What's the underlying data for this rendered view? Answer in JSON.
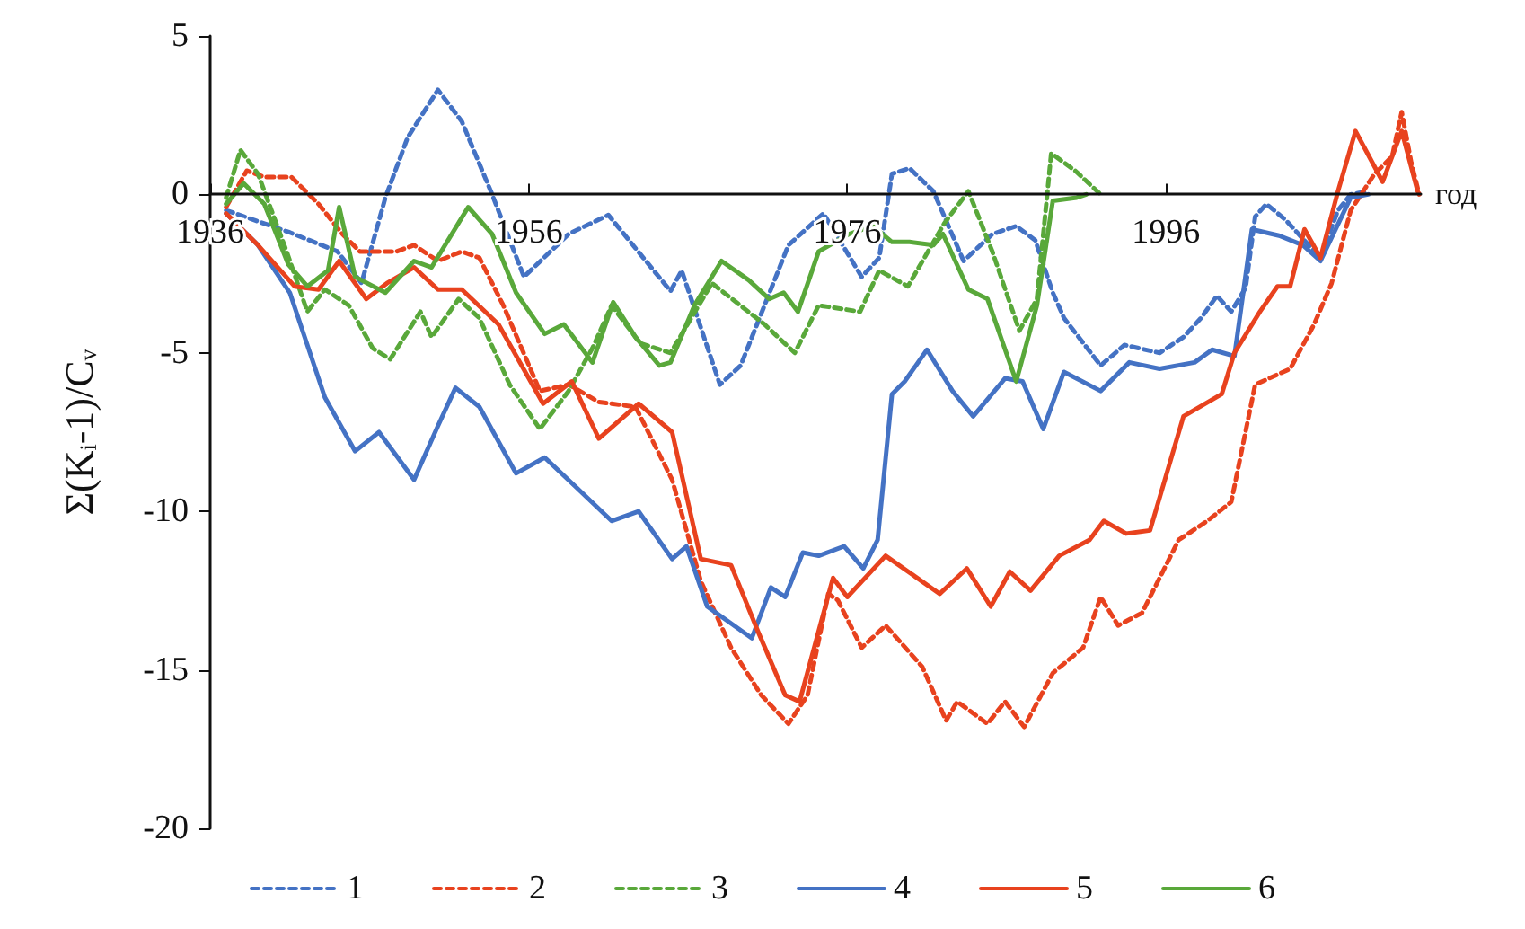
{
  "chart_data": {
    "type": "line",
    "xlabel": "год",
    "ylabel": "Σ(Kᵢ-1)/Cᵥ",
    "xlim": [
      1936,
      2012
    ],
    "xticks": [
      1936,
      1956,
      1976,
      1996
    ],
    "ylim": [
      -20,
      5
    ],
    "yticks": [
      -20,
      -15,
      -10,
      -5,
      0,
      5
    ],
    "grid": false,
    "legend": "bottom",
    "marker": "none",
    "series": [
      {
        "name": "1",
        "color": "#4472c4",
        "line_style": "dashed",
        "x": [
          1937,
          1941,
          1944,
          1945.5,
          1947,
          1948.4,
          1950.3,
          1951.8,
          1953.7,
          1955.7,
          1958.5,
          1961,
          1964.9,
          1965.6,
          1968,
          1969.3,
          1970.8,
          1972.3,
          1974.5,
          1976.9,
          1978,
          1978.8,
          1979.9,
          1981.4,
          1983.3,
          1985.1,
          1986.6,
          1987.8,
          1988.9,
          1989.6,
          1991.9,
          1993.4,
          1995.6,
          1997.1,
          1998.2,
          1999.2,
          2000.1,
          2001,
          2001.6,
          2002.3,
          2003.5,
          2005.7,
          2006.8,
          2007.6,
          2008.7
        ],
        "values": [
          -0.5,
          -1.2,
          -1.8,
          -2.8,
          -0.1,
          1.8,
          3.3,
          2.3,
          0,
          -2.6,
          -1.25,
          -0.65,
          -3.05,
          -2.4,
          -6.0,
          -5.4,
          -3.5,
          -1.6,
          -0.6,
          -2.6,
          -2.0,
          0.65,
          0.83,
          0.1,
          -2.1,
          -1.25,
          -1.0,
          -1.45,
          -3.1,
          -3.9,
          -5.4,
          -4.75,
          -5.0,
          -4.5,
          -3.9,
          -3.2,
          -3.7,
          -2.95,
          -0.7,
          -0.3,
          -0.8,
          -2.0,
          -0.5,
          0,
          0.1
        ]
      },
      {
        "name": "2",
        "color": "#e8421e",
        "line_style": "dashed",
        "x": [
          1937,
          1938.3,
          1939.4,
          1941.1,
          1942.8,
          1944.3,
          1945.4,
          1947.7,
          1948.8,
          1950.3,
          1951.8,
          1952.9,
          1954.4,
          1956.7,
          1958.5,
          1960.4,
          1962.7,
          1965,
          1966.8,
          1968.7,
          1970.6,
          1972.3,
          1973.5,
          1974.8,
          1975.4,
          1976.9,
          1978.4,
          1980.7,
          1982.2,
          1982.9,
          1984.8,
          1985.9,
          1987.1,
          1988.9,
          1990.8,
          1991.9,
          1993,
          1994.5,
          1996.8,
          1998.6,
          2000.1,
          2001.6,
          2003.8,
          2005.3,
          2006.4,
          2007.6,
          2009.1,
          2010.2,
          2010.8,
          2011.4,
          2011.9
        ],
        "values": [
          -0.4,
          0.75,
          0.55,
          0.55,
          -0.3,
          -1.25,
          -1.8,
          -1.8,
          -1.6,
          -2.1,
          -1.8,
          -2.0,
          -3.5,
          -6.2,
          -6.0,
          -6.55,
          -6.7,
          -9.0,
          -12.2,
          -14.3,
          -15.8,
          -16.7,
          -15.8,
          -12.6,
          -12.8,
          -14.3,
          -13.6,
          -14.9,
          -16.6,
          -16.0,
          -16.7,
          -16.0,
          -16.8,
          -15.1,
          -14.3,
          -12.7,
          -13.6,
          -13.2,
          -10.9,
          -10.3,
          -9.7,
          -6.0,
          -5.5,
          -4.1,
          -2.8,
          -0.5,
          0.65,
          1.2,
          2.6,
          1.0,
          0
        ]
      },
      {
        "name": "3",
        "color": "#59a83a",
        "line_style": "dashed",
        "x": [
          1937,
          1937.9,
          1939,
          1940.8,
          1942.1,
          1943.2,
          1944.7,
          1946.2,
          1947.3,
          1949.2,
          1949.9,
          1951.6,
          1952.9,
          1954.8,
          1956.7,
          1958.5,
          1960,
          1961.2,
          1963,
          1964.9,
          1967.5,
          1970.8,
          1972.7,
          1974.2,
          1976.8,
          1978,
          1979.8,
          1982.1,
          1983.6,
          1985.1,
          1986.8,
          1987.9,
          1988.8,
          1990.3,
          1991.9
        ],
        "values": [
          -0.1,
          1.4,
          0.65,
          -1.8,
          -3.7,
          -3.0,
          -3.5,
          -4.85,
          -5.2,
          -3.7,
          -4.5,
          -3.3,
          -3.9,
          -6.0,
          -7.4,
          -6.2,
          -4.85,
          -3.5,
          -4.7,
          -5.0,
          -2.8,
          -4.1,
          -5.0,
          -3.5,
          -3.7,
          -2.4,
          -2.9,
          -0.9,
          0.1,
          -1.8,
          -4.3,
          -3.3,
          1.3,
          0.75,
          0
        ]
      },
      {
        "name": "4",
        "color": "#4472c4",
        "line_style": "solid",
        "x": [
          1937,
          1939,
          1941,
          1943.2,
          1945.1,
          1946.6,
          1948.8,
          1950.3,
          1951.4,
          1952.9,
          1955.2,
          1957,
          1958.9,
          1961.2,
          1962.9,
          1965,
          1965.9,
          1967.2,
          1970,
          1971.2,
          1972.1,
          1973.2,
          1974.2,
          1975.8,
          1977,
          1977.9,
          1978.8,
          1979.6,
          1981,
          1982.6,
          1983.9,
          1985.9,
          1987,
          1988.3,
          1989.6,
          1991.9,
          1993.7,
          1995.6,
          1997.8,
          1998.9,
          2000.3,
          2001.4,
          2003.1,
          2004.6,
          2005.7,
          2007.6,
          2008.7
        ],
        "values": [
          -0.6,
          -1.6,
          -3.1,
          -6.4,
          -8.1,
          -7.5,
          -9.0,
          -7.3,
          -6.1,
          -6.7,
          -8.8,
          -8.3,
          -9.2,
          -10.3,
          -10.0,
          -11.5,
          -11.1,
          -13.0,
          -14.0,
          -12.4,
          -12.7,
          -11.3,
          -11.4,
          -11.1,
          -11.8,
          -10.9,
          -6.3,
          -5.9,
          -4.9,
          -6.2,
          -7.0,
          -5.8,
          -5.9,
          -7.4,
          -5.6,
          -6.2,
          -5.3,
          -5.5,
          -5.3,
          -4.9,
          -5.1,
          -1.1,
          -1.3,
          -1.6,
          -2.1,
          -0.1,
          0
        ]
      },
      {
        "name": "5",
        "color": "#e8421e",
        "line_style": "solid",
        "x": [
          1937,
          1939,
          1941.3,
          1942.8,
          1944.1,
          1945.8,
          1947.1,
          1948.8,
          1950.3,
          1951.8,
          1954.1,
          1956.9,
          1958.7,
          1960.4,
          1962.9,
          1965,
          1966.8,
          1968.7,
          1970.4,
          1972.1,
          1973,
          1975.1,
          1976,
          1978.4,
          1981.8,
          1983.5,
          1985,
          1986.2,
          1987.5,
          1989.3,
          1991.2,
          1992.1,
          1993.5,
          1995,
          1997.1,
          1999.5,
          2000.3,
          2001.9,
          2003,
          2003.8,
          2004.7,
          2005.7,
          2006.8,
          2007.9,
          2009.6,
          2010.8,
          2011.8
        ],
        "values": [
          -0.6,
          -1.6,
          -2.9,
          -3.0,
          -2.1,
          -3.3,
          -2.8,
          -2.3,
          -3.0,
          -3.0,
          -4.1,
          -6.6,
          -5.9,
          -7.7,
          -6.6,
          -7.5,
          -11.5,
          -11.7,
          -13.8,
          -15.8,
          -16.0,
          -12.1,
          -12.7,
          -11.4,
          -12.6,
          -11.8,
          -13.0,
          -11.9,
          -12.5,
          -11.4,
          -10.9,
          -10.3,
          -10.7,
          -10.6,
          -7.0,
          -6.3,
          -5.0,
          -3.7,
          -2.9,
          -2.9,
          -1.1,
          -2.0,
          0.1,
          2.0,
          0.4,
          2.0,
          0.1
        ]
      },
      {
        "name": "6",
        "color": "#59a83a",
        "line_style": "solid",
        "x": [
          1937,
          1938.1,
          1939.4,
          1940.9,
          1942.1,
          1943.4,
          1944.1,
          1945.1,
          1947,
          1948.8,
          1949.9,
          1952.2,
          1953.7,
          1955.2,
          1957,
          1958.2,
          1960,
          1961.3,
          1962.7,
          1964.2,
          1964.9,
          1966.4,
          1968.1,
          1969.8,
          1971.1,
          1972,
          1972.9,
          1974.2,
          1976.1,
          1977.6,
          1978.8,
          1979.9,
          1981.4,
          1982,
          1983.6,
          1984.8,
          1986.6,
          1987.9,
          1988.9,
          1990.4,
          1991
        ],
        "values": [
          -0.3,
          0.35,
          -0.3,
          -2.2,
          -2.9,
          -2.4,
          -0.4,
          -2.6,
          -3.1,
          -2.1,
          -2.3,
          -0.4,
          -1.25,
          -3.1,
          -4.4,
          -4.1,
          -5.3,
          -3.4,
          -4.5,
          -5.4,
          -5.3,
          -3.5,
          -2.1,
          -2.7,
          -3.3,
          -3.1,
          -3.7,
          -1.8,
          -1.25,
          -1.0,
          -1.5,
          -1.5,
          -1.6,
          -1.25,
          -3.0,
          -3.3,
          -5.9,
          -3.5,
          -0.2,
          -0.1,
          0
        ]
      }
    ]
  }
}
